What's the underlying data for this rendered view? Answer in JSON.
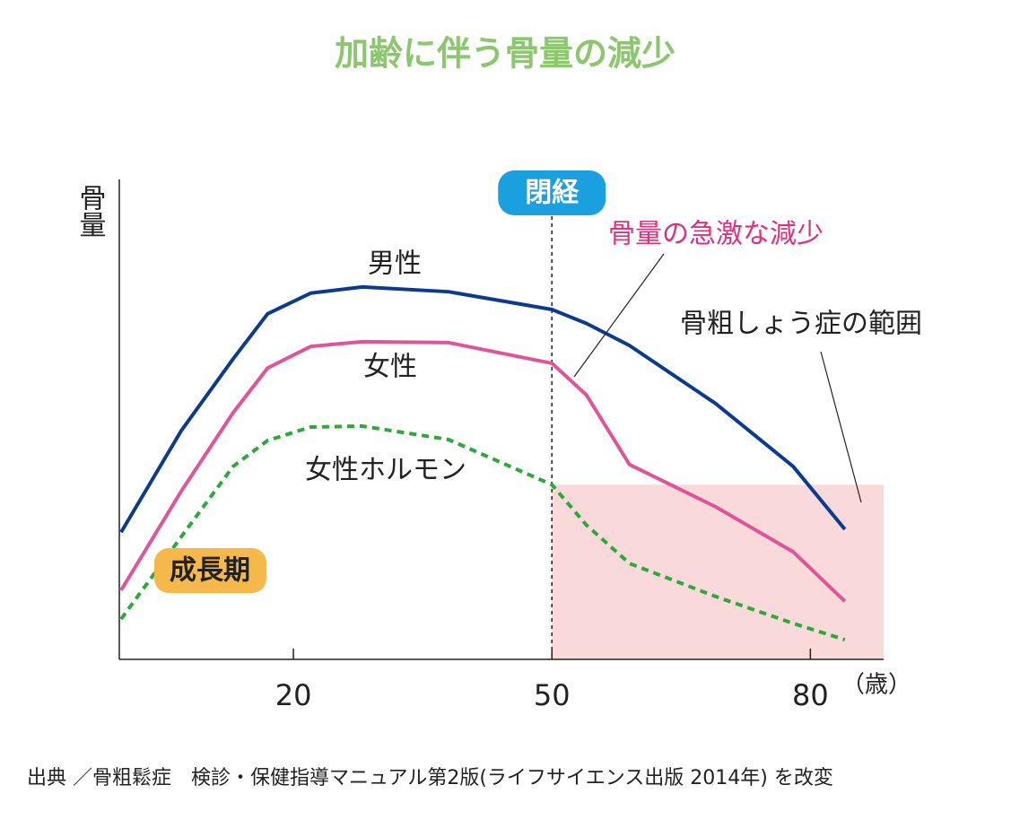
{
  "chart_data": {
    "type": "line",
    "title": "加齢に伴う骨量の減少",
    "y_label": "骨量",
    "x_label": "（歳）",
    "x": [
      0,
      7,
      13,
      17,
      22,
      28,
      38,
      50,
      54,
      59,
      69,
      78,
      84
    ],
    "xlim": [
      0,
      88.5
    ],
    "xticks": [
      20,
      50,
      80
    ],
    "ylim": [
      0,
      100
    ],
    "series": [
      {
        "name": "男性",
        "color": "#0b3a8e",
        "dash": false,
        "values": [
          26.5,
          47.7,
          62.6,
          72,
          76.3,
          77.6,
          76.6,
          72.9,
          70,
          65.4,
          53.3,
          40.2,
          27.1
        ]
      },
      {
        "name": "女性",
        "color": "#e0559a",
        "dash": false,
        "values": [
          14.4,
          35.1,
          51.4,
          60.7,
          65.2,
          66.2,
          66,
          61.7,
          55.1,
          40.6,
          31.8,
          22.4,
          12.1
        ]
      },
      {
        "name": "女性ホルモン",
        "color": "#2ea83a",
        "dash": true,
        "values": [
          8.4,
          25.6,
          40.2,
          45.6,
          48.4,
          48.6,
          45.8,
          36.4,
          28,
          20,
          13.1,
          7.5,
          4.1
        ]
      }
    ],
    "menopause": {
      "label": "閉経",
      "x": 50
    },
    "region": {
      "label": "骨粗しょう症の範囲",
      "x": [
        50,
        88.5
      ],
      "y": [
        0,
        36.4
      ],
      "color": "#f9d9da"
    },
    "growth_label": "成長期",
    "decline_label": "骨量の急激な減少",
    "source": "出典 ／骨粗鬆症　検診・保健指導マニュアル第2版(ライフサイエンス出版 2014年) を改変"
  }
}
